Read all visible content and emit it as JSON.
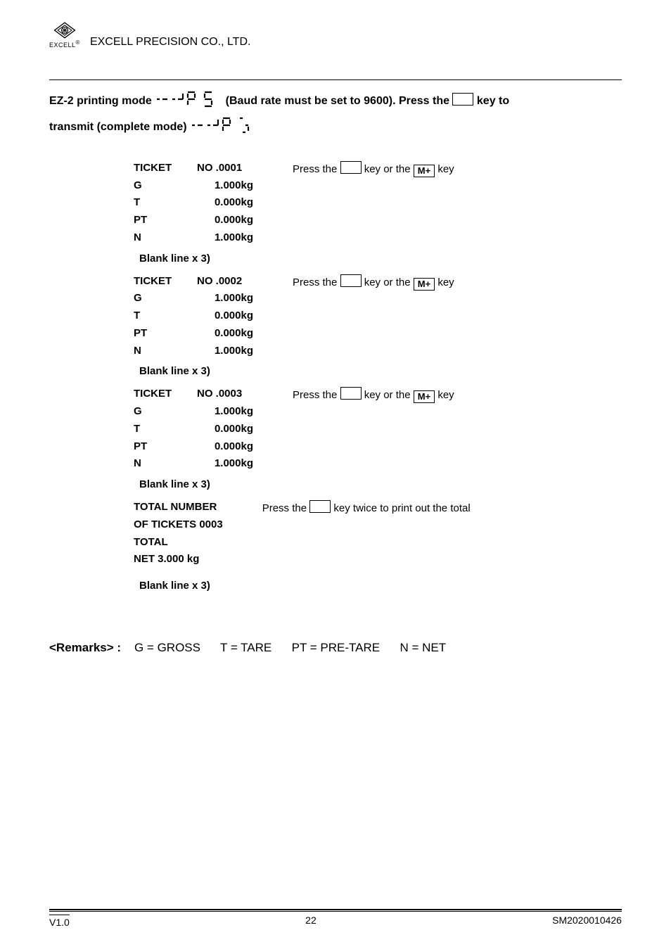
{
  "header": {
    "logo_text": "EXCELL",
    "company": "EXCELL PRECISION CO., LTD.",
    "reg": "®"
  },
  "intro": {
    "l1a": "EZ-2 printing mode ",
    "l1b": " (Baud rate must be set to 9600). Press the ",
    "l1c": " key to",
    "l2a": "transmit (complete mode)  "
  },
  "tickets": [
    {
      "lines": [
        {
          "lbl": "TICKET",
          "valno": "NO .0001"
        },
        {
          "lbl": "G",
          "val": "1.000kg"
        },
        {
          "lbl": "T",
          "val": "0.000kg"
        },
        {
          "lbl": "PT",
          "val": "0.000kg"
        },
        {
          "lbl": "N",
          "val": "1.000kg"
        }
      ],
      "press_a": "Press the ",
      "press_b": " key or the ",
      "press_key": "M+",
      "press_c": " key"
    },
    {
      "lines": [
        {
          "lbl": "TICKET",
          "valno": "NO .0002"
        },
        {
          "lbl": "G",
          "val": "1.000kg"
        },
        {
          "lbl": "T",
          "val": "0.000kg"
        },
        {
          "lbl": "PT",
          "val": "0.000kg"
        },
        {
          "lbl": "N",
          "val": "1.000kg"
        }
      ],
      "press_a": "Press the ",
      "press_b": " key or the ",
      "press_key": "M+",
      "press_c": " key"
    },
    {
      "lines": [
        {
          "lbl": "TICKET",
          "valno": "NO .0003"
        },
        {
          "lbl": "G",
          "val": "1.000kg"
        },
        {
          "lbl": "T",
          "val": "0.000kg"
        },
        {
          "lbl": "PT",
          "val": "0.000kg"
        },
        {
          "lbl": "N",
          "val": "1.000kg"
        }
      ],
      "press_a": "Press the ",
      "press_b": " key or the ",
      "press_key": "M+",
      "press_c": " key"
    }
  ],
  "blank_line": "Blank line x 3)",
  "total": {
    "r1": "TOTAL  NUMBER",
    "r2": "OF TICKETS   0003",
    "r3": "TOTAL",
    "r4": "NET       3.000 kg",
    "press_a": "Press the ",
    "press_b": " key twice to print out the total"
  },
  "remarks": {
    "label": "<Remarks> :",
    "g": "G = GROSS",
    "t": "T = TARE",
    "pt": "PT = PRE-TARE",
    "n": "N = NET"
  },
  "footer": {
    "version": "V1.0",
    "page": "22",
    "doc": "SM2020010426"
  },
  "seg_svg": {
    "mode": "<svg width='96' height='26' viewBox='0 0 96 26'><g stroke='#000' stroke-width='2.2' fill='none' stroke-linecap='butt'><path d='M3 13 L7 13 M11 13 L18 13'/><path d='M25 13 L29 13 M33 13 L40 13 M40 5 L40 13'/><path d='M47 3 L57 3 M47 5 L47 11 M47 13 L57 13 M57 5 L57 11 M47 15 L47 21'/><path d='M71 3 L81 3 M71 5 L71 11 M71 13 L81 13 M81 15 L81 21 M71 23 L81 23'/></g></svg>",
    "complete": "<svg width='100' height='26' viewBox='0 0 100 26'><g stroke='#000' stroke-width='2.2' fill='none' stroke-linecap='butt'><path d='M3 13 L7 13 M11 13 L18 13'/><path d='M25 13 L29 13 M33 13 L40 13 M40 5 L40 13'/><path d='M47 3 L57 3 M47 5 L47 11 M47 13 L57 13 M57 5 L57 11 M47 15 L47 21'/><path d='M71 3 L75 3 M79 13 L83 13 M83 15 L83 21 M79 23 L75 23'/></g></svg>"
  }
}
